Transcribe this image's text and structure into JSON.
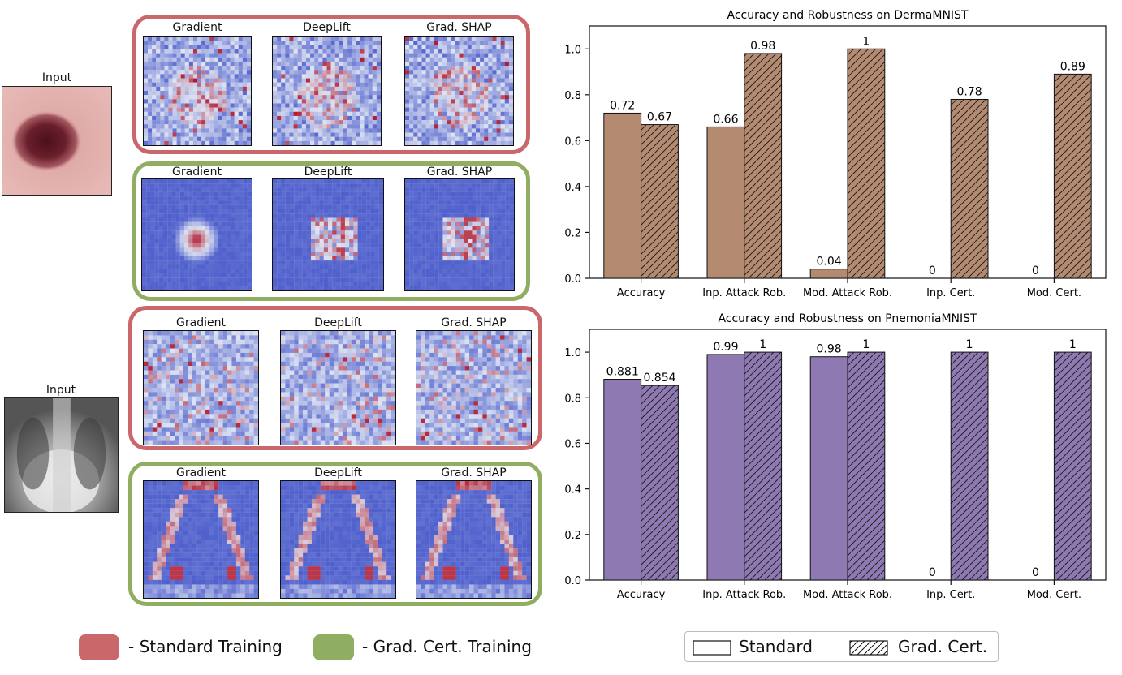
{
  "colors": {
    "standard_box": "#c9676a",
    "cert_box": "#8fae62",
    "derma_bar": "#b48a70",
    "pneu_bar": "#8e79b3",
    "heat_low": "#3f51c8",
    "heat_mid": "#dde3f2",
    "heat_high": "#b2182b"
  },
  "inputs": [
    {
      "label": "Input",
      "dataset": "derma"
    },
    {
      "label": "Input",
      "dataset": "pneumonia"
    }
  ],
  "groups": [
    {
      "kind": "standard",
      "panels": [
        "Gradient",
        "DeepLift",
        "Grad. SHAP"
      ],
      "pattern": "derma-noise"
    },
    {
      "kind": "cert",
      "panels": [
        "Gradient",
        "DeepLift",
        "Grad. SHAP"
      ],
      "pattern": "derma-center"
    },
    {
      "kind": "standard",
      "panels": [
        "Gradient",
        "DeepLift",
        "Grad. SHAP"
      ],
      "pattern": "pneu-noise"
    },
    {
      "kind": "cert",
      "panels": [
        "Gradient",
        "DeepLift",
        "Grad. SHAP"
      ],
      "pattern": "pneu-ribs"
    }
  ],
  "left_legend": {
    "standard": "- Standard Training",
    "cert": "- Grad. Cert. Training"
  },
  "bottom_legend": {
    "standard": "Standard",
    "cert": "Grad. Cert."
  },
  "chart_data": [
    {
      "type": "bar",
      "title": "Accuracy and Robustness on DermaMNIST",
      "categories": [
        "Accuracy",
        "Inp. Attack Rob.",
        "Mod. Attack Rob.",
        "Inp. Cert.",
        "Mod. Cert."
      ],
      "series": [
        {
          "name": "Standard",
          "values": [
            0.72,
            0.66,
            0.04,
            0,
            0
          ],
          "labels": [
            "0.72",
            "0.66",
            "0.04",
            "0",
            "0"
          ]
        },
        {
          "name": "Grad. Cert.",
          "values": [
            0.67,
            0.98,
            1,
            0.78,
            0.89
          ],
          "labels": [
            "0.67",
            "0.98",
            "1",
            "0.78",
            "0.89"
          ]
        }
      ],
      "ylim": [
        0,
        1.1
      ],
      "yticks": [
        "0.0",
        "0.2",
        "0.4",
        "0.6",
        "0.8",
        "1.0"
      ],
      "grid": false,
      "legend": "bottom"
    },
    {
      "type": "bar",
      "title": "Accuracy and Robustness on PnemoniaMNIST",
      "categories": [
        "Accuracy",
        "Inp. Attack Rob.",
        "Mod. Attack Rob.",
        "Inp. Cert.",
        "Mod. Cert."
      ],
      "series": [
        {
          "name": "Standard",
          "values": [
            0.881,
            0.99,
            0.98,
            0,
            0
          ],
          "labels": [
            "0.881",
            "0.99",
            "0.98",
            "0",
            "0"
          ]
        },
        {
          "name": "Grad. Cert.",
          "values": [
            0.854,
            1,
            1,
            1,
            1
          ],
          "labels": [
            "0.854",
            "1",
            "1",
            "1",
            "1"
          ]
        }
      ],
      "ylim": [
        0,
        1.1
      ],
      "yticks": [
        "0.0",
        "0.2",
        "0.4",
        "0.6",
        "0.8",
        "1.0"
      ],
      "grid": false,
      "legend": "bottom"
    }
  ]
}
